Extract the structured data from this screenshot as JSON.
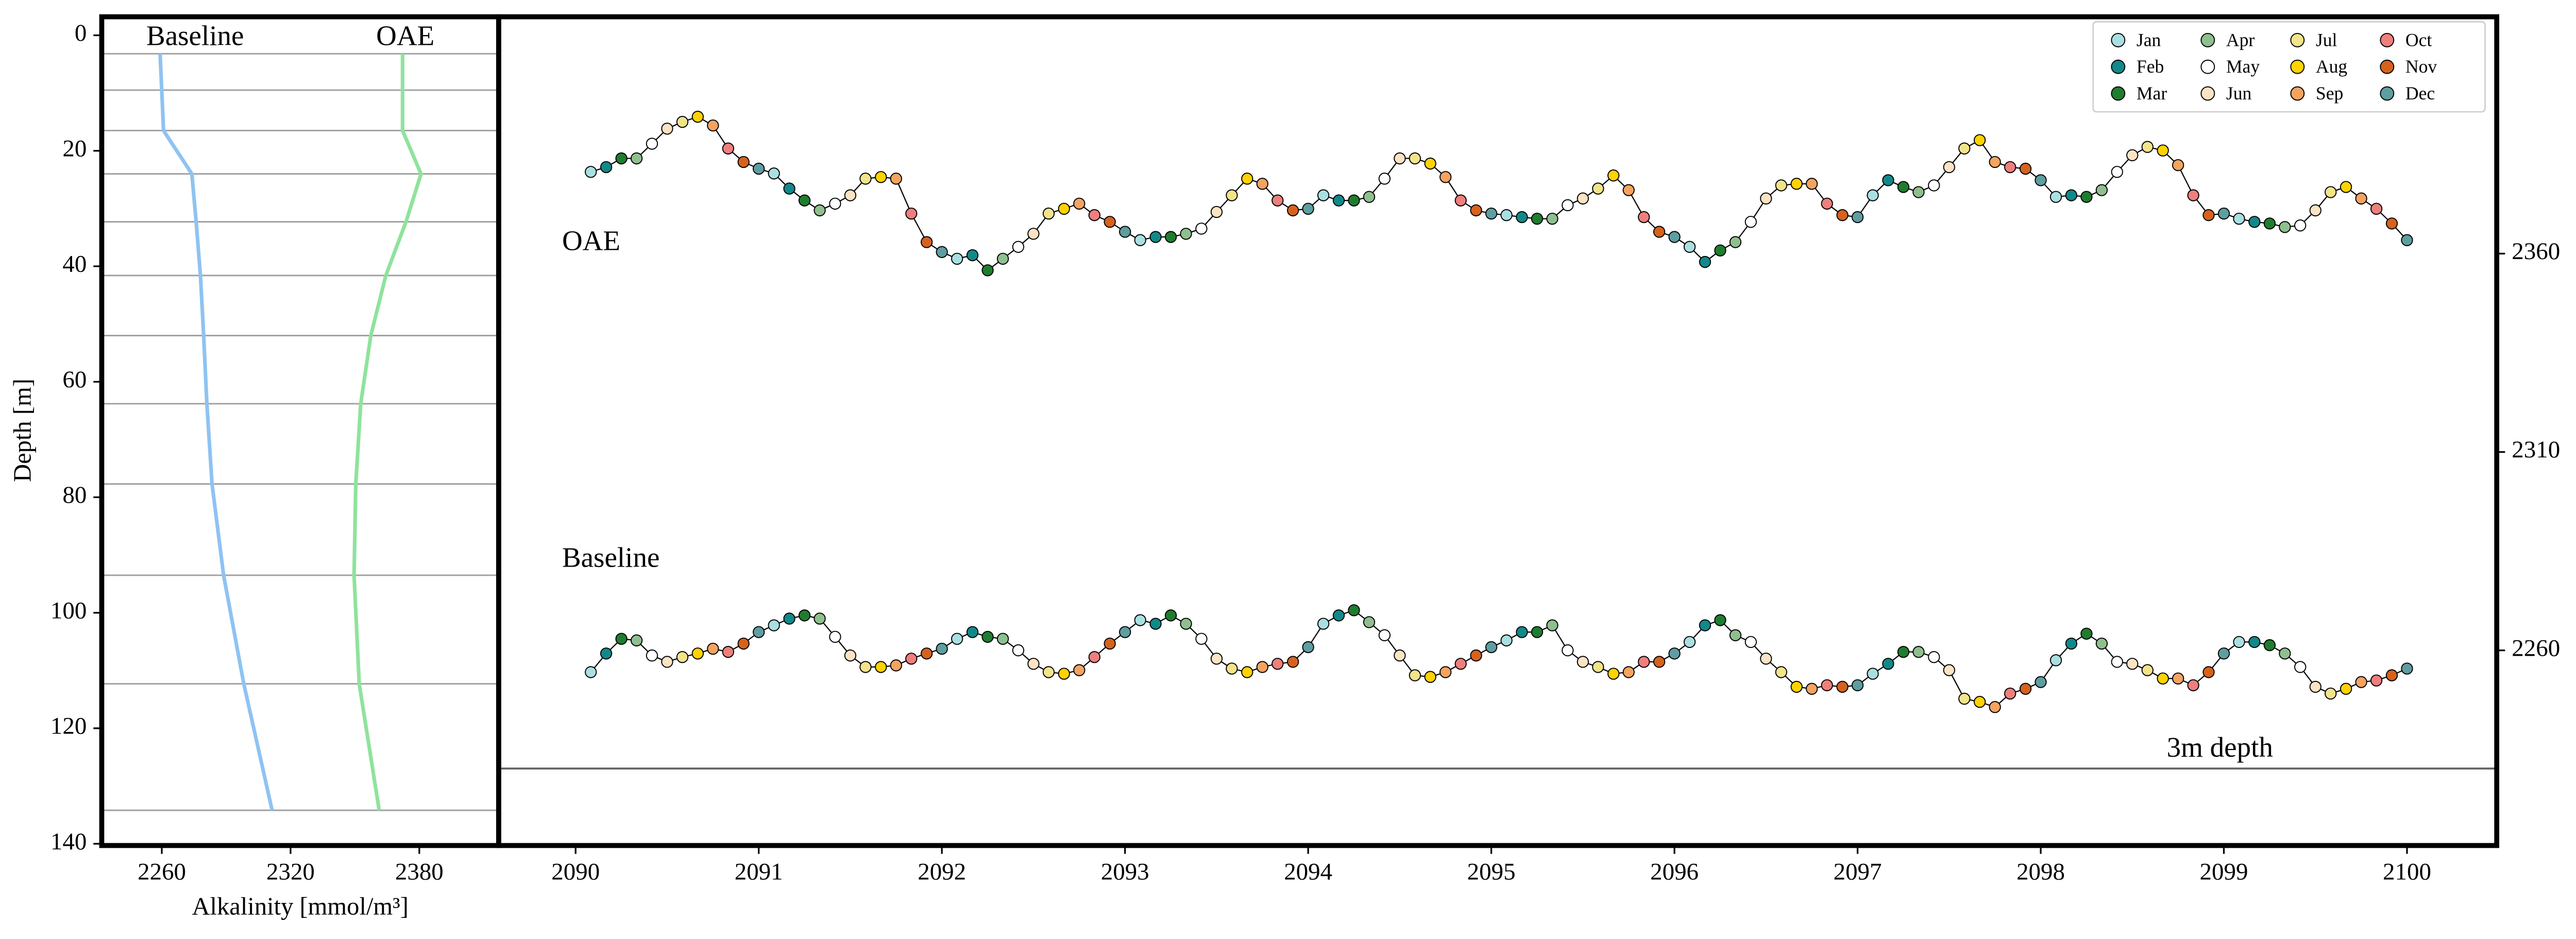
{
  "chart_data": [
    {
      "type": "profile",
      "x_label": "Alkalinity [mmol/m³]",
      "y_label": "Depth [m]",
      "xlim": [
        2232,
        2417
      ],
      "xticks": [
        2260,
        2320,
        2380
      ],
      "ylim": [
        140.3,
        -3.2
      ],
      "yticks": [
        0,
        20,
        40,
        60,
        80,
        100,
        120,
        140
      ],
      "depths": [
        3.2,
        16.5,
        24,
        32.3,
        41.6,
        52,
        63.8,
        77.7,
        93.5,
        112.3,
        134.2
      ],
      "hlines": [
        3.2,
        9.5,
        16.5,
        24,
        32.3,
        41.6,
        52,
        63.8,
        77.7,
        93.5,
        112.3,
        134.2
      ],
      "hline_color": "#a0a0a0",
      "series": [
        {
          "name": "Baseline",
          "color": "#8ec3f2",
          "values": [
            2259.2,
            2260.8,
            2274,
            2276,
            2278,
            2279.5,
            2281,
            2283.4,
            2288.8,
            2298.2,
            2311.4
          ]
        },
        {
          "name": "OAE",
          "color": "#8fe39c",
          "values": [
            2372.2,
            2372.2,
            2380.8,
            2373.8,
            2364.4,
            2357.4,
            2352.7,
            2350.4,
            2349.6,
            2352,
            2361.3
          ]
        }
      ]
    },
    {
      "type": "line-markers",
      "y_label": "Alkalinity [mmol/m³]",
      "y_axis_side": "right",
      "xlim": [
        2089.58,
        2100.49
      ],
      "xticks": [
        2090,
        2091,
        2092,
        2093,
        2094,
        2095,
        2096,
        2097,
        2098,
        2099,
        2100
      ],
      "ylim": [
        2210.8,
        2419.7
      ],
      "yticks": [
        2260,
        2310,
        2360
      ],
      "hlines": [
        {
          "value": 2230.2,
          "label": "3m depth"
        }
      ],
      "hline_color": "#666666",
      "line_color": "#000000",
      "legend": {
        "position": "upper right",
        "labels": [
          "Jan",
          "Feb",
          "Mar",
          "Apr",
          "May",
          "Jun",
          "Jul",
          "Aug",
          "Sep",
          "Oct",
          "Nov",
          "Dec"
        ],
        "colors": [
          "#aadfe2",
          "#11898a",
          "#1f7d2f",
          "#8fbf8f",
          "#ffffff",
          "#fbe3c4",
          "#f1e48a",
          "#ffd200",
          "#f4a361",
          "#ee7f7c",
          "#d6621e",
          "#5f9ea0"
        ]
      },
      "x": [
        2090.083,
        2090.167,
        2090.25,
        2090.333,
        2090.417,
        2090.5,
        2090.583,
        2090.667,
        2090.75,
        2090.833,
        2090.917,
        2091,
        2091.083,
        2091.167,
        2091.25,
        2091.333,
        2091.417,
        2091.5,
        2091.583,
        2091.667,
        2091.75,
        2091.833,
        2091.917,
        2092,
        2092.083,
        2092.167,
        2092.25,
        2092.333,
        2092.417,
        2092.5,
        2092.583,
        2092.667,
        2092.75,
        2092.833,
        2092.917,
        2093,
        2093.083,
        2093.167,
        2093.25,
        2093.333,
        2093.417,
        2093.5,
        2093.583,
        2093.667,
        2093.75,
        2093.833,
        2093.917,
        2094,
        2094.083,
        2094.167,
        2094.25,
        2094.333,
        2094.417,
        2094.5,
        2094.583,
        2094.667,
        2094.75,
        2094.833,
        2094.917,
        2095,
        2095.083,
        2095.167,
        2095.25,
        2095.333,
        2095.417,
        2095.5,
        2095.583,
        2095.667,
        2095.75,
        2095.833,
        2095.917,
        2096,
        2096.083,
        2096.167,
        2096.25,
        2096.333,
        2096.417,
        2096.5,
        2096.583,
        2096.667,
        2096.75,
        2096.833,
        2096.917,
        2097,
        2097.083,
        2097.167,
        2097.25,
        2097.333,
        2097.417,
        2097.5,
        2097.583,
        2097.667,
        2097.75,
        2097.833,
        2097.917,
        2098,
        2098.083,
        2098.167,
        2098.25,
        2098.333,
        2098.417,
        2098.5,
        2098.583,
        2098.667,
        2098.75,
        2098.833,
        2098.917,
        2099,
        2099.083,
        2099.167,
        2099.25,
        2099.333,
        2099.417,
        2099.5,
        2099.583,
        2099.667,
        2099.75,
        2099.833,
        2099.917,
        2100
      ],
      "series": [
        {
          "name": "OAE",
          "values": [
            2380.6,
            2381.8,
            2384,
            2384,
            2387.7,
            2391.5,
            2393.2,
            2394.5,
            2392.3,
            2386.5,
            2383.1,
            2381.4,
            2380.2,
            2376.4,
            2373.4,
            2370.9,
            2372.6,
            2374.7,
            2378.9,
            2379.3,
            2378.9,
            2370.1,
            2362.9,
            2360.4,
            2358.7,
            2359.6,
            2355.8,
            2358.7,
            2361.7,
            2365,
            2370.1,
            2371.3,
            2372.6,
            2369.7,
            2368,
            2365.5,
            2363.4,
            2364.2,
            2364.2,
            2365,
            2366.3,
            2370.5,
            2374.7,
            2378.9,
            2377.6,
            2373.4,
            2370.9,
            2371.3,
            2374.7,
            2373.4,
            2373.4,
            2374.3,
            2378.9,
            2384,
            2384,
            2382.7,
            2379.3,
            2373.4,
            2370.9,
            2370.1,
            2369.7,
            2369.2,
            2368.8,
            2368.8,
            2372.2,
            2373.9,
            2376.4,
            2379.7,
            2376,
            2369.2,
            2365.5,
            2364.2,
            2361.7,
            2357.9,
            2360.8,
            2362.9,
            2368,
            2373.9,
            2377.2,
            2377.6,
            2377.6,
            2372.6,
            2369.7,
            2369.2,
            2374.7,
            2378.5,
            2376.8,
            2375.5,
            2377.2,
            2381.8,
            2386.5,
            2388.6,
            2383.1,
            2381.8,
            2381.4,
            2378.5,
            2374.3,
            2374.7,
            2374.3,
            2376,
            2380.6,
            2384.8,
            2386.9,
            2386,
            2382.3,
            2374.7,
            2369.7,
            2370.1,
            2368.8,
            2368,
            2367.6,
            2366.7,
            2367.1,
            2370.9,
            2375.5,
            2376.8,
            2373.9,
            2371.3,
            2367.6,
            2363.4
          ]
        },
        {
          "name": "Baseline",
          "values": [
            2254.5,
            2259.2,
            2262.9,
            2262.5,
            2258.7,
            2257.1,
            2258.3,
            2259.2,
            2260.4,
            2259.6,
            2261.7,
            2264.6,
            2266.3,
            2268,
            2268.8,
            2268,
            2263.4,
            2258.7,
            2255.8,
            2255.8,
            2256.2,
            2257.9,
            2259.2,
            2260.4,
            2262.9,
            2264.6,
            2263.4,
            2262.9,
            2260,
            2256.6,
            2254.5,
            2254.1,
            2255,
            2258.3,
            2261.7,
            2264.6,
            2267.6,
            2266.7,
            2268.8,
            2266.7,
            2262.9,
            2257.9,
            2255.4,
            2254.5,
            2255.8,
            2256.6,
            2257.1,
            2260.8,
            2266.7,
            2268.8,
            2270.1,
            2267.1,
            2263.8,
            2258.7,
            2253.7,
            2253.3,
            2254.5,
            2256.6,
            2258.7,
            2260.8,
            2262.5,
            2264.6,
            2264.6,
            2266.3,
            2260,
            2257.1,
            2255.8,
            2254.1,
            2254.5,
            2257.1,
            2257.1,
            2259.2,
            2262.1,
            2266.3,
            2267.6,
            2263.8,
            2262.1,
            2257.9,
            2254.5,
            2250.8,
            2250.3,
            2251.2,
            2250.8,
            2251.2,
            2254.1,
            2256.6,
            2259.6,
            2259.6,
            2258.3,
            2255,
            2247.8,
            2247,
            2245.7,
            2249.1,
            2250.3,
            2252,
            2257.5,
            2261.7,
            2264.2,
            2261.7,
            2257.1,
            2256.6,
            2255,
            2252.9,
            2252.9,
            2251.2,
            2254.5,
            2259.2,
            2262.1,
            2262.1,
            2261.3,
            2259.2,
            2255.8,
            2250.8,
            2249.1,
            2250.3,
            2252,
            2252.4,
            2253.7,
            2255.4
          ]
        }
      ]
    }
  ]
}
